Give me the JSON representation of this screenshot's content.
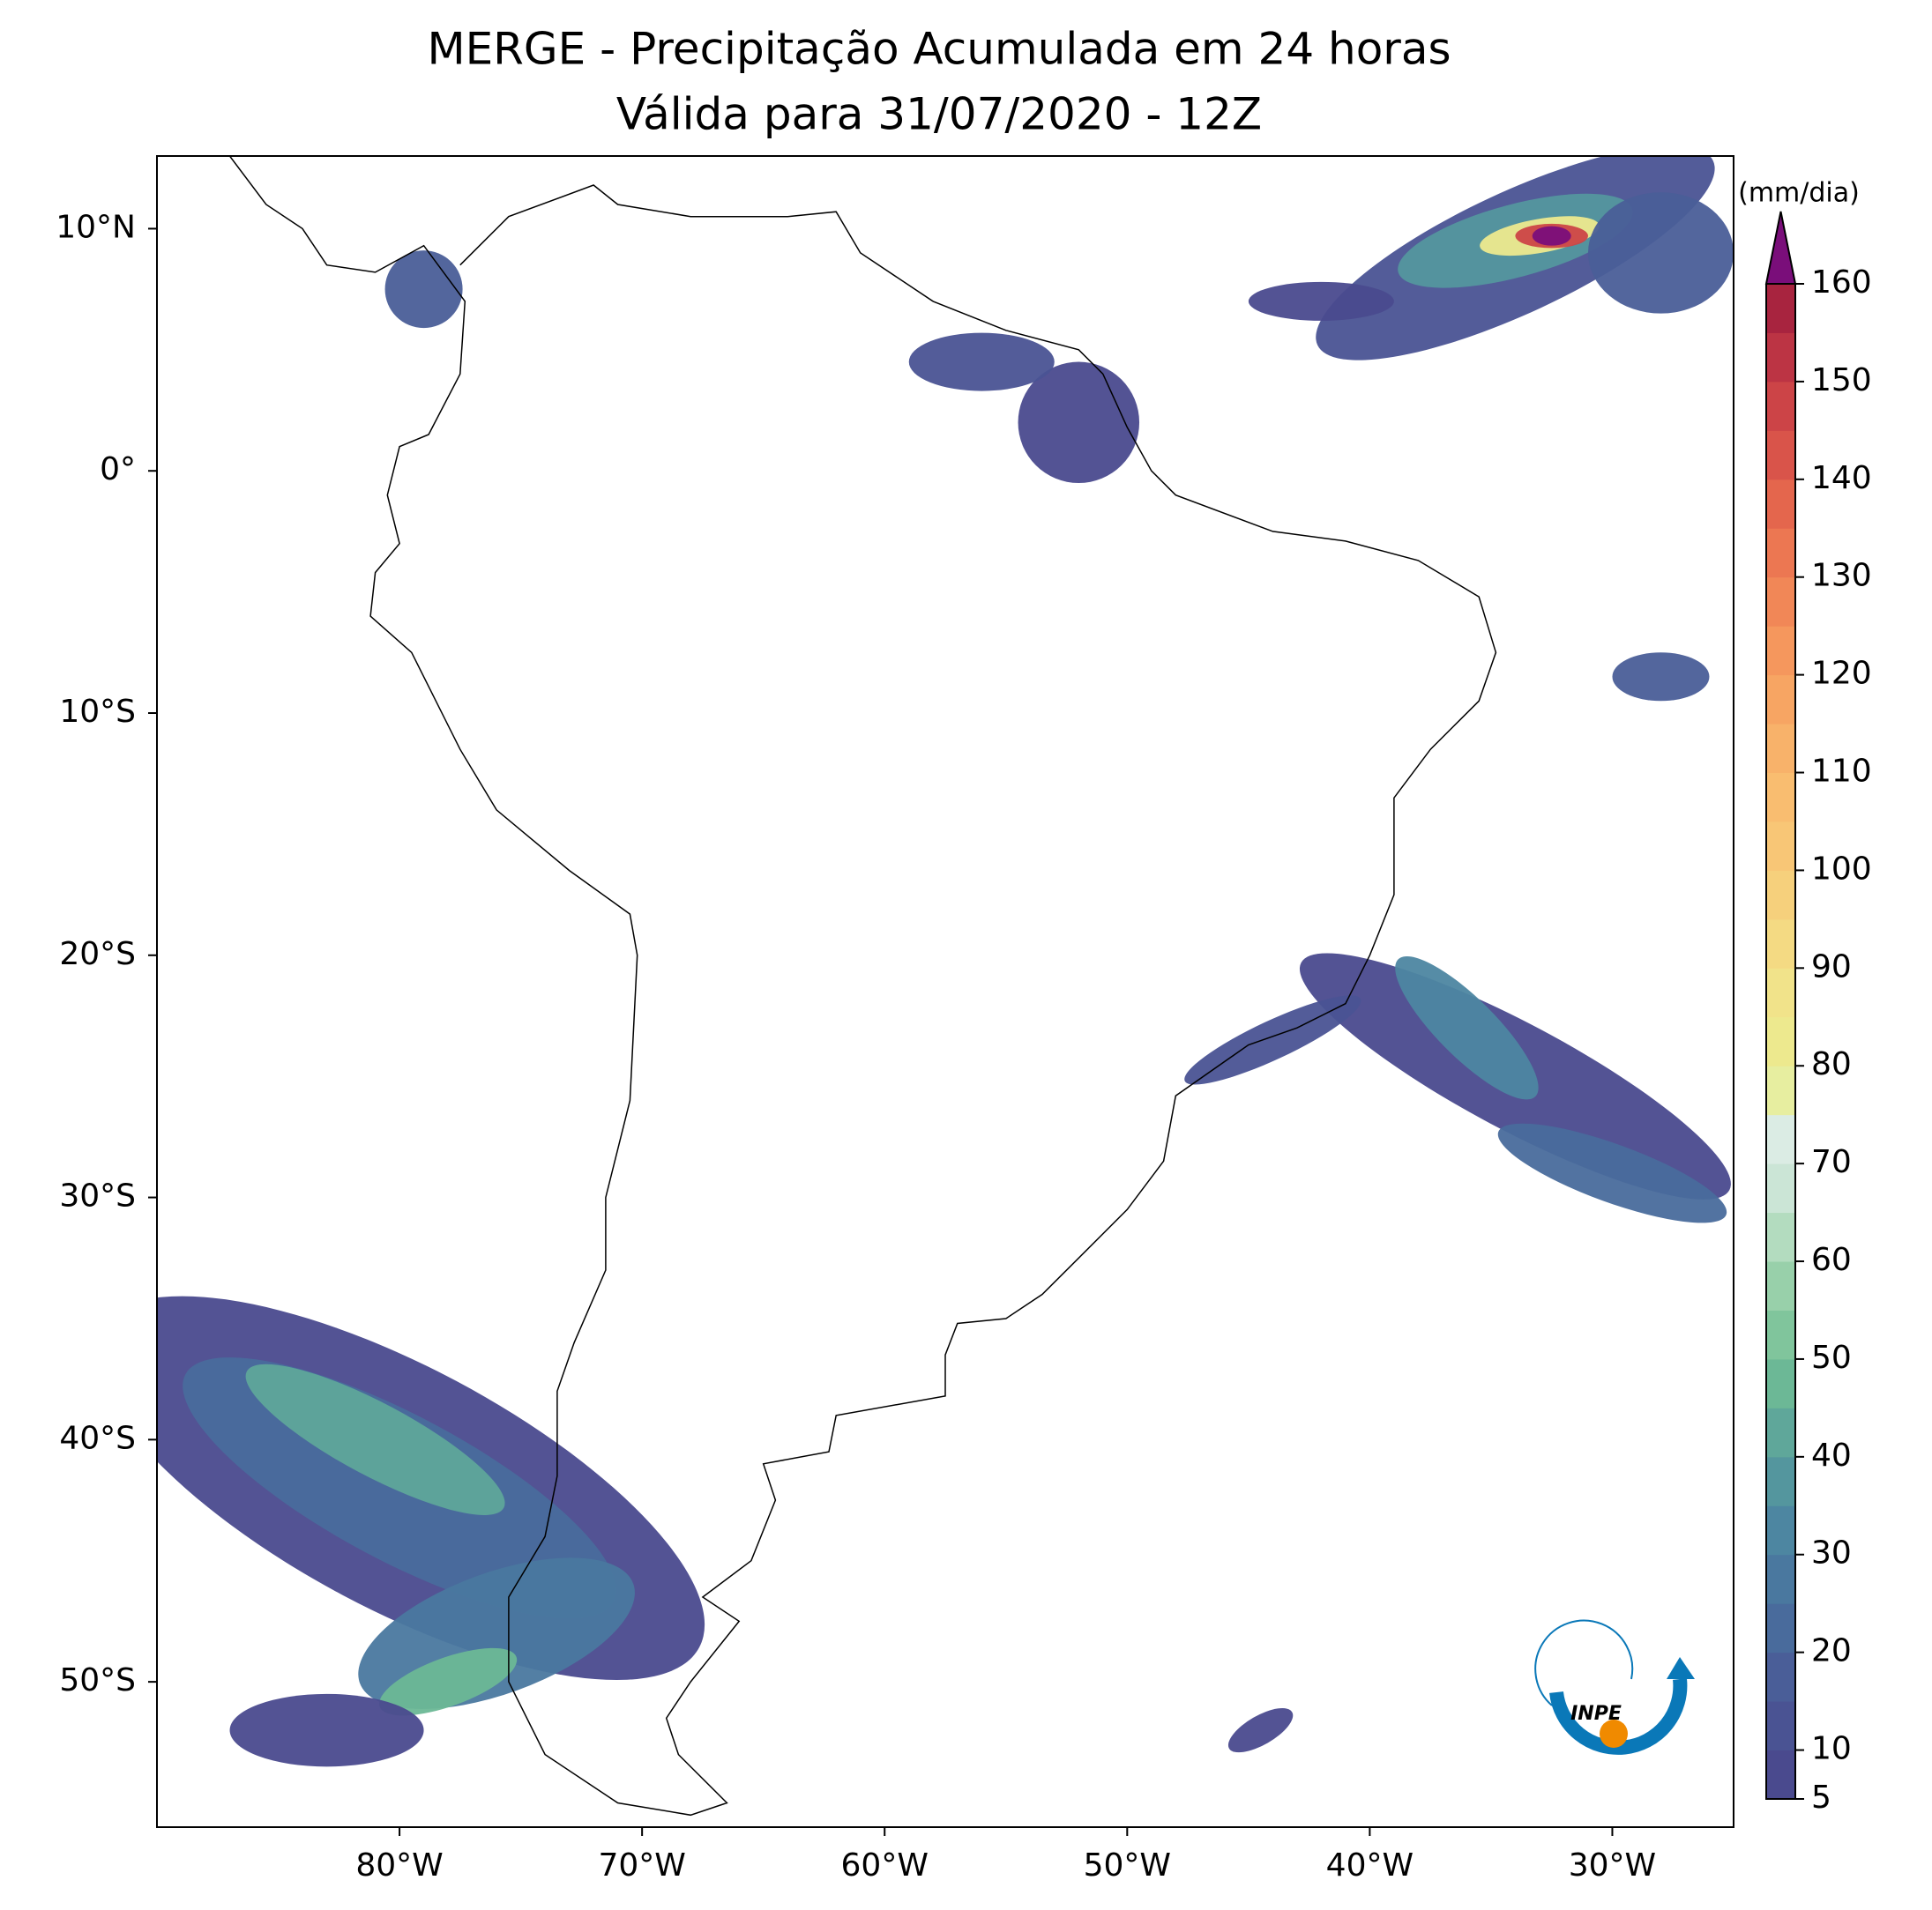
{
  "title": [
    "MERGE - Precipitação Acumulada em 24 horas",
    "Válida para 31/07/2020 - 12Z"
  ],
  "map": {
    "xlim": [
      -90,
      -25
    ],
    "ylim": [
      -56,
      13
    ],
    "xticks": [
      {
        "value": -80,
        "label": "80°W"
      },
      {
        "value": -70,
        "label": "70°W"
      },
      {
        "value": -60,
        "label": "60°W"
      },
      {
        "value": -50,
        "label": "50°W"
      },
      {
        "value": -40,
        "label": "40°W"
      },
      {
        "value": -30,
        "label": "30°W"
      }
    ],
    "yticks": [
      {
        "value": 10,
        "label": "10°N"
      },
      {
        "value": 0,
        "label": "0°"
      },
      {
        "value": -10,
        "label": "10°S"
      },
      {
        "value": -20,
        "label": "20°S"
      },
      {
        "value": -30,
        "label": "30°S"
      },
      {
        "value": -40,
        "label": "40°S"
      },
      {
        "value": -50,
        "label": "50°S"
      }
    ]
  },
  "colorbar": {
    "label": "(mm/dia)",
    "range": [
      5,
      160
    ],
    "ticks": [
      5,
      10,
      20,
      30,
      40,
      50,
      60,
      70,
      80,
      90,
      100,
      110,
      120,
      130,
      140,
      150,
      160
    ],
    "colors": [
      "#4a4a8e",
      "#4a5393",
      "#4a5e98",
      "#496b9c",
      "#4a789f",
      "#4d86a1",
      "#54969e",
      "#5fa79a",
      "#6cb896",
      "#80c59c",
      "#98d0aa",
      "#b3dcbf",
      "#cbe5d6",
      "#dbece4",
      "#e7eea0",
      "#ede98e",
      "#f1e38a",
      "#f4da83",
      "#f6d07c",
      "#f8c676",
      "#f9bd70",
      "#f8b26a",
      "#f7a563",
      "#f5975d",
      "#f18757",
      "#ec7752",
      "#e4664d",
      "#d9544a",
      "#cc4447",
      "#bc3444",
      "#a8243f"
    ],
    "extend_color": "#7a0e7a"
  },
  "logo": "INPE"
}
